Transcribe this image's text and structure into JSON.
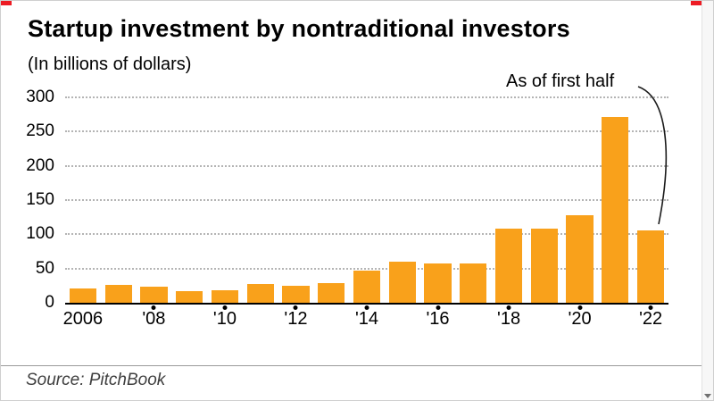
{
  "chart_data": {
    "type": "bar",
    "title": "Startup investment by nontraditional investors",
    "subtitle": "(In billions of dollars)",
    "annotation": "As of first half",
    "source": "Source: PitchBook",
    "bar_color": "#F9A11B",
    "ylim": [
      0,
      300
    ],
    "y_ticks": [
      0,
      50,
      100,
      150,
      200,
      250,
      300
    ],
    "years": [
      2006,
      2007,
      2008,
      2009,
      2010,
      2011,
      2012,
      2013,
      2014,
      2015,
      2016,
      2017,
      2018,
      2019,
      2020,
      2021,
      2022
    ],
    "values": [
      21,
      26,
      24,
      17,
      18,
      27,
      25,
      29,
      47,
      60,
      57,
      57,
      108,
      108,
      128,
      271,
      106
    ],
    "x_ticks": [
      {
        "i": 0,
        "label": "2006",
        "dot": false
      },
      {
        "i": 2,
        "label": "'08",
        "dot": true
      },
      {
        "i": 4,
        "label": "'10",
        "dot": true
      },
      {
        "i": 6,
        "label": "'12",
        "dot": true
      },
      {
        "i": 8,
        "label": "'14",
        "dot": true
      },
      {
        "i": 10,
        "label": "'16",
        "dot": true
      },
      {
        "i": 12,
        "label": "'18",
        "dot": true
      },
      {
        "i": 14,
        "label": "'20",
        "dot": true
      },
      {
        "i": 16,
        "label": "'22",
        "dot": true
      }
    ],
    "grid": "dotted-horizontal",
    "legend": "none"
  }
}
